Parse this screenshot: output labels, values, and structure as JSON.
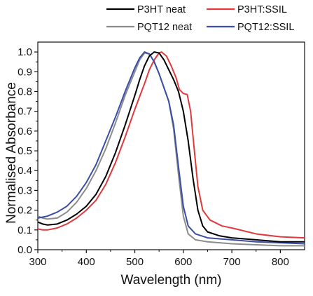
{
  "colors": {
    "p3ht_neat": "#000000",
    "p3ht_ssil": "#e0393c",
    "pqt12_neat": "#8c8c8c",
    "pqt12_ssil": "#3a4ea8"
  },
  "chart_data": {
    "type": "line",
    "title": "",
    "xlabel": "Wavelength (nm)",
    "ylabel": "Normalised Absorbance",
    "xlim": [
      300,
      850
    ],
    "ylim": [
      0.0,
      1.05
    ],
    "xticks": [
      "300",
      "400",
      "500",
      "600",
      "700",
      "800"
    ],
    "yticks": [
      "0.0",
      "0.1",
      "0.2",
      "0.3",
      "0.4",
      "0.5",
      "0.6",
      "0.7",
      "0.8",
      "0.9",
      "1.0"
    ],
    "grid": false,
    "legend_position": "top",
    "series": [
      {
        "name": "P3HT neat",
        "color": "#000000",
        "points": [
          [
            300,
            0.14
          ],
          [
            310,
            0.13
          ],
          [
            320,
            0.125
          ],
          [
            340,
            0.13
          ],
          [
            360,
            0.15
          ],
          [
            380,
            0.18
          ],
          [
            400,
            0.22
          ],
          [
            420,
            0.28
          ],
          [
            440,
            0.37
          ],
          [
            460,
            0.49
          ],
          [
            480,
            0.63
          ],
          [
            500,
            0.78
          ],
          [
            510,
            0.86
          ],
          [
            520,
            0.93
          ],
          [
            530,
            0.98
          ],
          [
            540,
            1.0
          ],
          [
            550,
            0.995
          ],
          [
            560,
            0.96
          ],
          [
            570,
            0.91
          ],
          [
            580,
            0.86
          ],
          [
            590,
            0.8
          ],
          [
            600,
            0.7
          ],
          [
            610,
            0.55
          ],
          [
            620,
            0.36
          ],
          [
            630,
            0.2
          ],
          [
            640,
            0.12
          ],
          [
            650,
            0.09
          ],
          [
            675,
            0.07
          ],
          [
            700,
            0.06
          ],
          [
            750,
            0.05
          ],
          [
            800,
            0.04
          ],
          [
            850,
            0.04
          ]
        ]
      },
      {
        "name": "P3HT:SSIL",
        "color": "#e0393c",
        "points": [
          [
            300,
            0.105
          ],
          [
            310,
            0.1
          ],
          [
            320,
            0.1
          ],
          [
            340,
            0.11
          ],
          [
            360,
            0.13
          ],
          [
            380,
            0.16
          ],
          [
            400,
            0.2
          ],
          [
            420,
            0.25
          ],
          [
            440,
            0.33
          ],
          [
            460,
            0.44
          ],
          [
            480,
            0.57
          ],
          [
            500,
            0.71
          ],
          [
            520,
            0.84
          ],
          [
            530,
            0.91
          ],
          [
            540,
            0.96
          ],
          [
            550,
            0.995
          ],
          [
            555,
            1.0
          ],
          [
            565,
            0.98
          ],
          [
            575,
            0.93
          ],
          [
            585,
            0.87
          ],
          [
            592,
            0.81
          ],
          [
            600,
            0.79
          ],
          [
            608,
            0.785
          ],
          [
            615,
            0.7
          ],
          [
            622,
            0.52
          ],
          [
            630,
            0.32
          ],
          [
            640,
            0.2
          ],
          [
            655,
            0.15
          ],
          [
            680,
            0.12
          ],
          [
            700,
            0.11
          ],
          [
            750,
            0.08
          ],
          [
            800,
            0.065
          ],
          [
            850,
            0.06
          ]
        ]
      },
      {
        "name": "PQT12 neat",
        "color": "#8c8c8c",
        "points": [
          [
            300,
            0.17
          ],
          [
            310,
            0.16
          ],
          [
            320,
            0.155
          ],
          [
            340,
            0.16
          ],
          [
            360,
            0.19
          ],
          [
            380,
            0.24
          ],
          [
            400,
            0.31
          ],
          [
            420,
            0.4
          ],
          [
            440,
            0.51
          ],
          [
            460,
            0.64
          ],
          [
            480,
            0.78
          ],
          [
            500,
            0.9
          ],
          [
            510,
            0.96
          ],
          [
            520,
            0.995
          ],
          [
            530,
            0.99
          ],
          [
            540,
            0.95
          ],
          [
            550,
            0.89
          ],
          [
            560,
            0.82
          ],
          [
            570,
            0.75
          ],
          [
            580,
            0.61
          ],
          [
            590,
            0.38
          ],
          [
            600,
            0.17
          ],
          [
            610,
            0.08
          ],
          [
            625,
            0.05
          ],
          [
            650,
            0.04
          ],
          [
            700,
            0.03
          ],
          [
            750,
            0.025
          ],
          [
            800,
            0.02
          ],
          [
            850,
            0.02
          ]
        ]
      },
      {
        "name": "PQT12:SSIL",
        "color": "#3a4ea8",
        "points": [
          [
            300,
            0.16
          ],
          [
            310,
            0.165
          ],
          [
            320,
            0.17
          ],
          [
            340,
            0.19
          ],
          [
            360,
            0.22
          ],
          [
            380,
            0.27
          ],
          [
            400,
            0.34
          ],
          [
            420,
            0.43
          ],
          [
            440,
            0.55
          ],
          [
            460,
            0.67
          ],
          [
            480,
            0.8
          ],
          [
            500,
            0.92
          ],
          [
            510,
            0.97
          ],
          [
            520,
            1.0
          ],
          [
            530,
            0.99
          ],
          [
            540,
            0.95
          ],
          [
            550,
            0.89
          ],
          [
            560,
            0.82
          ],
          [
            570,
            0.75
          ],
          [
            580,
            0.63
          ],
          [
            590,
            0.42
          ],
          [
            600,
            0.22
          ],
          [
            610,
            0.12
          ],
          [
            625,
            0.08
          ],
          [
            650,
            0.06
          ],
          [
            700,
            0.05
          ],
          [
            750,
            0.04
          ],
          [
            800,
            0.035
          ],
          [
            850,
            0.03
          ]
        ]
      }
    ]
  }
}
